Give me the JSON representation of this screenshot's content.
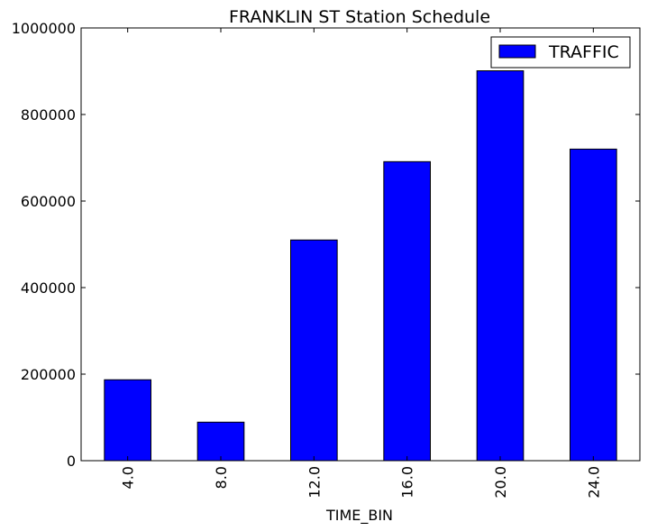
{
  "chart_data": {
    "type": "bar",
    "title": "FRANKLIN ST Station Schedule",
    "xlabel": "TIME_BIN",
    "ylabel": "",
    "categories": [
      "4.0",
      "8.0",
      "12.0",
      "16.0",
      "20.0",
      "24.0"
    ],
    "series": [
      {
        "name": "TRAFFIC",
        "color": "#0000ff",
        "values": [
          187000,
          89000,
          510000,
          691000,
          901000,
          720000
        ]
      }
    ],
    "ylim": [
      0,
      1000000
    ],
    "yticks": [
      "0",
      "200000",
      "400000",
      "600000",
      "800000",
      "1000000"
    ],
    "grid": false,
    "legend_position": "top-right"
  }
}
